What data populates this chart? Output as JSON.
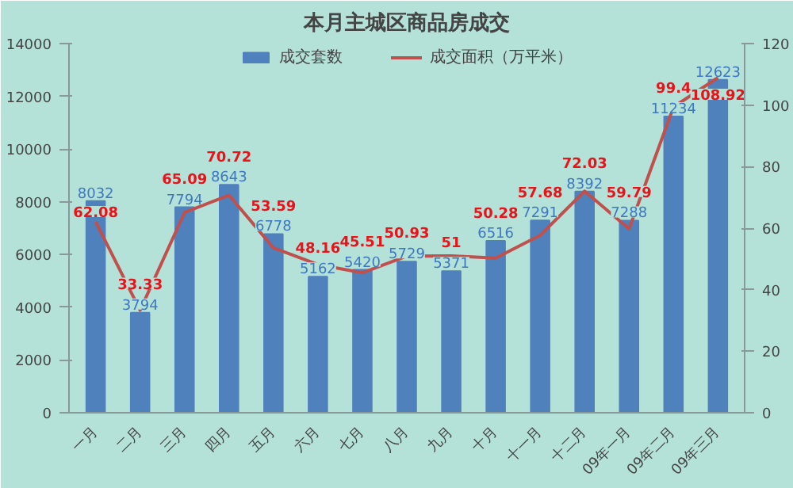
{
  "chart_data": {
    "type": "bar",
    "title": "本月主城区商品房成交",
    "categories": [
      "一月",
      "二月",
      "三月",
      "四月",
      "五月",
      "六月",
      "七月",
      "八月",
      "九月",
      "十月",
      "十一月",
      "十二月",
      "09年一月",
      "09年二月",
      "09年三月"
    ],
    "series": [
      {
        "name": "成交套数",
        "color": "#4f81bd",
        "values": [
          8032,
          3794,
          7794,
          8643,
          6778,
          5162,
          5420,
          5729,
          5371,
          6516,
          7291,
          8392,
          7288,
          11234,
          12623
        ]
      },
      {
        "name": "成交面积（万平米）",
        "type": "line",
        "axis": "y2",
        "color": "#c0504d",
        "values": [
          62.08,
          33.33,
          65.09,
          70.72,
          53.59,
          48.16,
          45.51,
          50.93,
          51,
          50.28,
          57.68,
          72.03,
          59.79,
          99.4,
          108.92
        ]
      }
    ],
    "ylim": [
      0,
      14000
    ],
    "yticks": [
      0,
      2000,
      4000,
      6000,
      8000,
      10000,
      12000,
      14000
    ],
    "y2lim": [
      0,
      120
    ],
    "y2ticks": [
      0,
      20,
      40,
      60,
      80,
      100,
      120
    ],
    "data_labels": true,
    "grid": false,
    "legend": "top"
  }
}
